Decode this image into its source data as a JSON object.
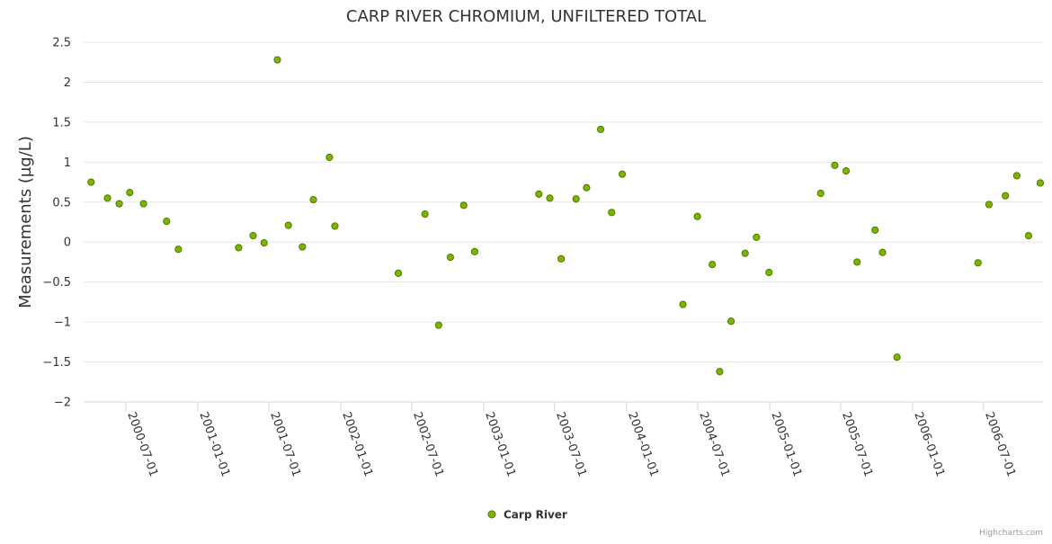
{
  "chart_data": {
    "type": "scatter",
    "title": "CARP RIVER CHROMIUM, UNFILTERED TOTAL",
    "xlabel": "",
    "ylabel": "Measurements (µg/L)",
    "ylim": [
      -2,
      2.5
    ],
    "yticks": [
      "2.5",
      "2",
      "1.5",
      "1",
      "0.5",
      "0",
      "−0.5",
      "−1",
      "−1.5",
      "−2"
    ],
    "ytick_values": [
      2.5,
      2,
      1.5,
      1,
      0.5,
      0,
      -0.5,
      -1,
      -1.5,
      -2
    ],
    "xlim": [
      "2000-03-15",
      "2006-11-30"
    ],
    "xticks": [
      "2000-07-01",
      "2001-01-01",
      "2001-07-01",
      "2002-01-01",
      "2002-07-01",
      "2003-01-01",
      "2003-07-01",
      "2004-01-01",
      "2004-07-01",
      "2005-01-01",
      "2005-07-01",
      "2006-01-01",
      "2006-07-01"
    ],
    "grid": true,
    "legend_position": "bottom-center",
    "marker_color": "#7cb500",
    "marker_stroke": "#4d7a00",
    "series": [
      {
        "name": "Carp River",
        "points": [
          {
            "x": "2000-04-03",
            "y": 0.75
          },
          {
            "x": "2000-05-15",
            "y": 0.55
          },
          {
            "x": "2000-06-14",
            "y": 0.48
          },
          {
            "x": "2000-07-11",
            "y": 0.62
          },
          {
            "x": "2000-08-15",
            "y": 0.48
          },
          {
            "x": "2000-10-13",
            "y": 0.26
          },
          {
            "x": "2000-11-12",
            "y": -0.09
          },
          {
            "x": "2001-04-15",
            "y": -0.07
          },
          {
            "x": "2001-05-22",
            "y": 0.08
          },
          {
            "x": "2001-06-19",
            "y": -0.01
          },
          {
            "x": "2001-07-23",
            "y": 2.28
          },
          {
            "x": "2001-08-20",
            "y": 0.21
          },
          {
            "x": "2001-09-25",
            "y": -0.06
          },
          {
            "x": "2001-10-23",
            "y": 0.53
          },
          {
            "x": "2001-12-03",
            "y": 1.06
          },
          {
            "x": "2001-12-17",
            "y": 0.2
          },
          {
            "x": "2002-05-28",
            "y": -0.39
          },
          {
            "x": "2002-08-04",
            "y": 0.35
          },
          {
            "x": "2002-09-08",
            "y": -1.04
          },
          {
            "x": "2002-10-08",
            "y": -0.19
          },
          {
            "x": "2002-11-11",
            "y": 0.46
          },
          {
            "x": "2002-12-09",
            "y": -0.12
          },
          {
            "x": "2003-05-22",
            "y": 0.6
          },
          {
            "x": "2003-06-19",
            "y": 0.55
          },
          {
            "x": "2003-07-18",
            "y": -0.21
          },
          {
            "x": "2003-08-25",
            "y": 0.54
          },
          {
            "x": "2003-09-21",
            "y": 0.68
          },
          {
            "x": "2003-10-27",
            "y": 1.41
          },
          {
            "x": "2003-11-24",
            "y": 0.37
          },
          {
            "x": "2003-12-21",
            "y": 0.85
          },
          {
            "x": "2004-05-24",
            "y": -0.78
          },
          {
            "x": "2004-06-30",
            "y": 0.32
          },
          {
            "x": "2004-08-07",
            "y": -0.28
          },
          {
            "x": "2004-08-26",
            "y": -1.62
          },
          {
            "x": "2004-09-24",
            "y": -0.99
          },
          {
            "x": "2004-10-30",
            "y": -0.14
          },
          {
            "x": "2004-11-28",
            "y": 0.06
          },
          {
            "x": "2004-12-30",
            "y": -0.38
          },
          {
            "x": "2005-05-11",
            "y": 0.61
          },
          {
            "x": "2005-06-16",
            "y": 0.96
          },
          {
            "x": "2005-07-15",
            "y": 0.89
          },
          {
            "x": "2005-08-12",
            "y": -0.25
          },
          {
            "x": "2005-09-27",
            "y": 0.15
          },
          {
            "x": "2005-10-16",
            "y": -0.13
          },
          {
            "x": "2005-11-22",
            "y": -1.44
          },
          {
            "x": "2006-06-17",
            "y": -0.26
          },
          {
            "x": "2006-07-15",
            "y": 0.47
          },
          {
            "x": "2006-08-26",
            "y": 0.58
          },
          {
            "x": "2006-09-24",
            "y": 0.83
          },
          {
            "x": "2006-10-24",
            "y": 0.08
          },
          {
            "x": "2006-11-23",
            "y": 0.74
          }
        ]
      }
    ]
  },
  "credits": "Highcharts.com"
}
